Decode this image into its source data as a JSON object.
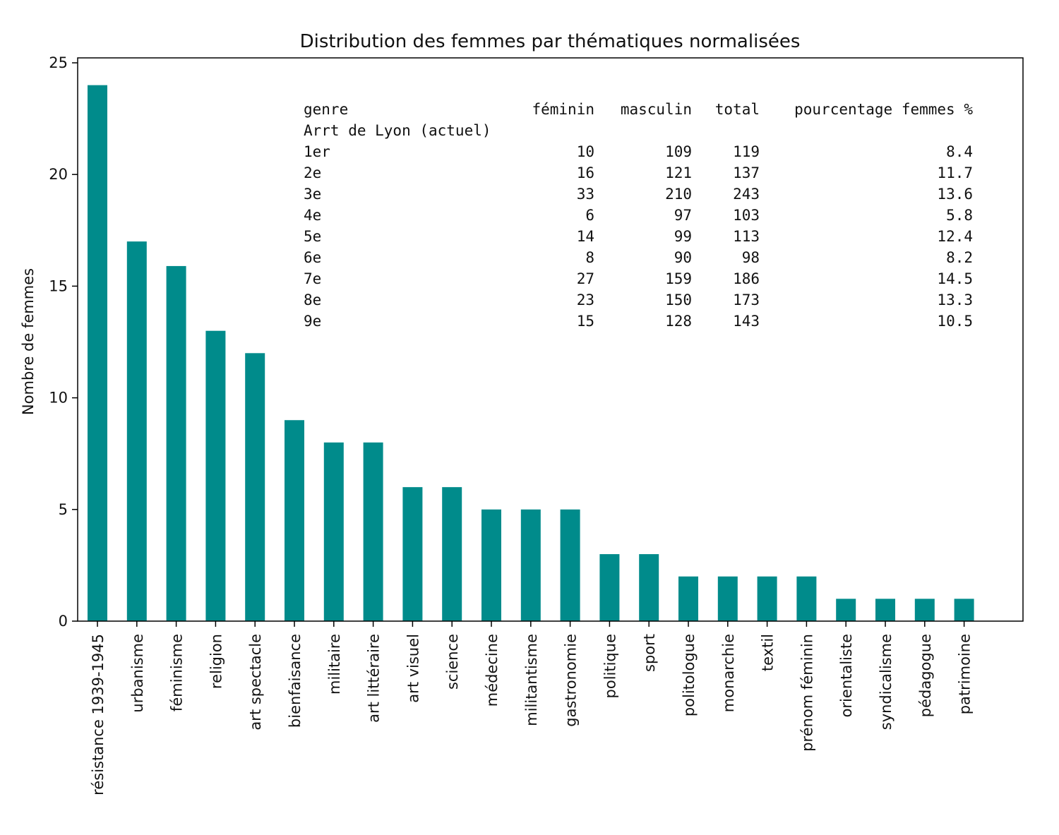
{
  "chart_data": {
    "type": "bar",
    "title": "Distribution des femmes par thématiques normalisées",
    "xlabel": "",
    "ylabel": "Nombre de femmes",
    "ylim": [
      0,
      25
    ],
    "yticks": [
      0,
      5,
      10,
      15,
      20,
      25
    ],
    "grid": false,
    "bar_color": "#008b8b",
    "categories": [
      "résistance 1939-1945",
      "urbanisme",
      "féminisme",
      "religion",
      "art spectacle",
      "bienfaisance",
      "militaire",
      "art littéraire",
      "art visuel",
      "science",
      "médecine",
      "militantisme",
      "gastronomie",
      "politique",
      "sport",
      "politologue",
      "monarchie",
      "textil",
      "prénom féminin",
      "orientaliste",
      "syndicalisme",
      "pédagogue",
      "patrimoine"
    ],
    "values": [
      24,
      17,
      15.9,
      13,
      12,
      9,
      8,
      8,
      6,
      6,
      5,
      5,
      5,
      3,
      3,
      2,
      2,
      2,
      2,
      1,
      1,
      1,
      1
    ],
    "annotation_table": {
      "columns": [
        "genre",
        "féminin",
        "masculin",
        "total",
        "pourcentage femmes %"
      ],
      "index_name": "Arrt de Lyon (actuel)",
      "rows": [
        [
          "1er",
          "10",
          "109",
          "119",
          "8.4"
        ],
        [
          "2e",
          "16",
          "121",
          "137",
          "11.7"
        ],
        [
          "3e",
          "33",
          "210",
          "243",
          "13.6"
        ],
        [
          "4e",
          "6",
          "97",
          "103",
          "5.8"
        ],
        [
          "5e",
          "14",
          "99",
          "113",
          "12.4"
        ],
        [
          "6e",
          "8",
          "90",
          "98",
          "8.2"
        ],
        [
          "7e",
          "27",
          "159",
          "186",
          "14.5"
        ],
        [
          "8e",
          "23",
          "150",
          "173",
          "13.3"
        ],
        [
          "9e",
          "15",
          "128",
          "143",
          "10.5"
        ]
      ]
    }
  }
}
